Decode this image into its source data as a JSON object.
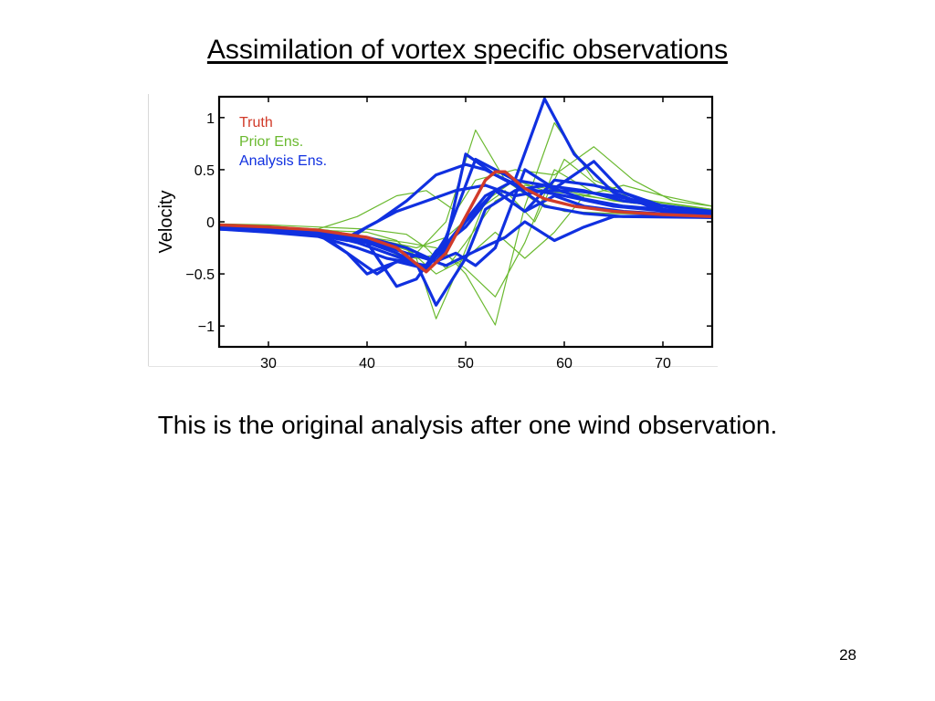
{
  "slide": {
    "title": "Assimilation of vortex specific observations",
    "caption": "This is the original analysis after one wind observation.",
    "page_number": "28"
  },
  "chart_data": {
    "type": "line",
    "ylabel": "Velocity",
    "xlabel": "",
    "xlim": [
      25,
      75
    ],
    "ylim": [
      -1.2,
      1.2
    ],
    "xticks": [
      30,
      40,
      50,
      60,
      70
    ],
    "yticks": [
      {
        "value": 1,
        "label": "1"
      },
      {
        "value": 0.5,
        "label": "0.5"
      },
      {
        "value": 0,
        "label": "0"
      },
      {
        "value": -0.5,
        "label": "−0.5"
      },
      {
        "value": -1,
        "label": "−1"
      }
    ],
    "grid": false,
    "legend_position": "top-left",
    "legend": [
      {
        "label": "Truth",
        "color": "#d13b2a"
      },
      {
        "label": "Prior Ens.",
        "color": "#6ab92f"
      },
      {
        "label": "Analysis Ens.",
        "color": "#1030e0"
      }
    ],
    "series_groups": [
      {
        "group": "Prior Ens.",
        "color": "#6ab92f",
        "members": [
          [
            [
              25,
              -0.02
            ],
            [
              30,
              -0.03
            ],
            [
              35,
              -0.05
            ],
            [
              40,
              -0.07
            ],
            [
              44,
              -0.12
            ],
            [
              46,
              -0.25
            ],
            [
              48,
              -0.45
            ],
            [
              50,
              -0.2
            ],
            [
              53,
              0.2
            ],
            [
              56,
              0.35
            ],
            [
              60,
              0.3
            ],
            [
              65,
              0.2
            ],
            [
              70,
              0.15
            ],
            [
              75,
              0.12
            ]
          ],
          [
            [
              25,
              -0.05
            ],
            [
              30,
              -0.06
            ],
            [
              35,
              -0.08
            ],
            [
              40,
              -0.1
            ],
            [
              43,
              -0.18
            ],
            [
              45,
              -0.35
            ],
            [
              47,
              -0.93
            ],
            [
              49,
              -0.5
            ],
            [
              52,
              0.2
            ],
            [
              55,
              0.4
            ],
            [
              58,
              0.3
            ],
            [
              62,
              0.25
            ],
            [
              67,
              0.18
            ],
            [
              75,
              0.12
            ]
          ],
          [
            [
              25,
              -0.03
            ],
            [
              30,
              -0.04
            ],
            [
              36,
              -0.08
            ],
            [
              40,
              -0.15
            ],
            [
              44,
              -0.2
            ],
            [
              47,
              -0.25
            ],
            [
              50,
              -0.45
            ],
            [
              53,
              -0.72
            ],
            [
              56,
              -0.2
            ],
            [
              59,
              0.5
            ],
            [
              63,
              0.28
            ],
            [
              67,
              0.18
            ],
            [
              75,
              0.12
            ]
          ],
          [
            [
              25,
              -0.05
            ],
            [
              30,
              -0.07
            ],
            [
              35,
              -0.1
            ],
            [
              39,
              -0.2
            ],
            [
              42,
              -0.3
            ],
            [
              45,
              -0.35
            ],
            [
              48,
              -0.3
            ],
            [
              50,
              -0.5
            ],
            [
              53,
              -0.99
            ],
            [
              56,
              0.15
            ],
            [
              59,
              0.95
            ],
            [
              63,
              0.4
            ],
            [
              68,
              0.2
            ],
            [
              75,
              0.12
            ]
          ],
          [
            [
              25,
              -0.04
            ],
            [
              30,
              -0.05
            ],
            [
              35,
              -0.07
            ],
            [
              39,
              0.05
            ],
            [
              43,
              0.25
            ],
            [
              46,
              0.3
            ],
            [
              49,
              0.1
            ],
            [
              51,
              0.4
            ],
            [
              55,
              0.5
            ],
            [
              59,
              0.45
            ],
            [
              63,
              0.72
            ],
            [
              67,
              0.4
            ],
            [
              71,
              0.2
            ],
            [
              75,
              0.15
            ]
          ],
          [
            [
              25,
              -0.05
            ],
            [
              30,
              -0.06
            ],
            [
              35,
              -0.1
            ],
            [
              40,
              -0.15
            ],
            [
              45,
              -0.25
            ],
            [
              48,
              -0.15
            ],
            [
              51,
              0.1
            ],
            [
              54,
              0.3
            ],
            [
              57,
              0.0
            ],
            [
              60,
              0.6
            ],
            [
              64,
              0.3
            ],
            [
              69,
              0.2
            ],
            [
              75,
              0.12
            ]
          ],
          [
            [
              25,
              -0.06
            ],
            [
              30,
              -0.08
            ],
            [
              35,
              -0.12
            ],
            [
              40,
              -0.15
            ],
            [
              44,
              -0.25
            ],
            [
              47,
              -0.5
            ],
            [
              50,
              -0.35
            ],
            [
              53,
              -0.1
            ],
            [
              56,
              -0.35
            ],
            [
              59,
              -0.1
            ],
            [
              62,
              0.25
            ],
            [
              66,
              0.35
            ],
            [
              70,
              0.25
            ],
            [
              75,
              0.15
            ]
          ],
          [
            [
              25,
              -0.04
            ],
            [
              30,
              -0.05
            ],
            [
              35,
              -0.07
            ],
            [
              40,
              -0.15
            ],
            [
              45,
              -0.3
            ],
            [
              48,
              0.0
            ],
            [
              51,
              0.88
            ],
            [
              54,
              0.4
            ],
            [
              57,
              0.2
            ],
            [
              60,
              0.1
            ],
            [
              65,
              0.08
            ],
            [
              75,
              0.06
            ]
          ]
        ]
      },
      {
        "group": "Analysis Ens.",
        "color": "#1030e0",
        "members": [
          [
            [
              25,
              -0.06
            ],
            [
              30,
              -0.08
            ],
            [
              36,
              -0.12
            ],
            [
              40,
              -0.2
            ],
            [
              43,
              -0.3
            ],
            [
              46,
              -0.45
            ],
            [
              49,
              -0.1
            ],
            [
              52,
              0.25
            ],
            [
              55,
              0.4
            ],
            [
              58,
              0.35
            ],
            [
              62,
              0.22
            ],
            [
              66,
              0.15
            ],
            [
              75,
              0.08
            ]
          ],
          [
            [
              25,
              -0.07
            ],
            [
              30,
              -0.1
            ],
            [
              35,
              -0.14
            ],
            [
              39,
              -0.25
            ],
            [
              42,
              -0.35
            ],
            [
              46,
              -0.42
            ],
            [
              48,
              -0.2
            ],
            [
              50,
              0.65
            ],
            [
              53,
              0.45
            ],
            [
              56,
              0.32
            ],
            [
              60,
              0.25
            ],
            [
              65,
              0.15
            ],
            [
              75,
              0.06
            ]
          ],
          [
            [
              25,
              -0.05
            ],
            [
              30,
              -0.07
            ],
            [
              35,
              -0.1
            ],
            [
              38,
              -0.3
            ],
            [
              41,
              -0.5
            ],
            [
              43,
              -0.38
            ],
            [
              46,
              -0.45
            ],
            [
              48,
              -0.15
            ],
            [
              51,
              0.6
            ],
            [
              55,
              0.4
            ],
            [
              58,
              1.18
            ],
            [
              61,
              0.65
            ],
            [
              65,
              0.28
            ],
            [
              70,
              0.1
            ],
            [
              75,
              0.05
            ]
          ],
          [
            [
              25,
              -0.05
            ],
            [
              30,
              -0.07
            ],
            [
              35,
              -0.11
            ],
            [
              39,
              -0.2
            ],
            [
              42,
              -0.3
            ],
            [
              45,
              -0.4
            ],
            [
              47,
              -0.8
            ],
            [
              50,
              -0.35
            ],
            [
              52,
              0.12
            ],
            [
              55,
              0.3
            ],
            [
              58,
              0.35
            ],
            [
              62,
              0.3
            ],
            [
              66,
              0.2
            ],
            [
              75,
              0.1
            ]
          ],
          [
            [
              25,
              -0.04
            ],
            [
              30,
              -0.05
            ],
            [
              35,
              -0.1
            ],
            [
              40,
              -0.2
            ],
            [
              43,
              -0.62
            ],
            [
              45,
              -0.55
            ],
            [
              47,
              -0.28
            ],
            [
              50,
              -0.05
            ],
            [
              53,
              0.3
            ],
            [
              56,
              0.1
            ],
            [
              59,
              0.4
            ],
            [
              63,
              0.35
            ],
            [
              66,
              0.28
            ],
            [
              70,
              0.15
            ],
            [
              75,
              0.08
            ]
          ],
          [
            [
              25,
              -0.06
            ],
            [
              30,
              -0.08
            ],
            [
              36,
              -0.1
            ],
            [
              40,
              -0.15
            ],
            [
              44,
              -0.25
            ],
            [
              47,
              -0.38
            ],
            [
              49,
              -0.3
            ],
            [
              51,
              -0.42
            ],
            [
              53,
              -0.25
            ],
            [
              56,
              0.5
            ],
            [
              59,
              0.32
            ],
            [
              63,
              0.58
            ],
            [
              66,
              0.28
            ],
            [
              70,
              0.12
            ],
            [
              75,
              0.06
            ]
          ],
          [
            [
              25,
              -0.07
            ],
            [
              30,
              -0.09
            ],
            [
              35,
              -0.13
            ],
            [
              38,
              -0.18
            ],
            [
              40,
              -0.05
            ],
            [
              43,
              0.1
            ],
            [
              46,
              0.2
            ],
            [
              49,
              0.3
            ],
            [
              52,
              0.35
            ],
            [
              55,
              0.25
            ],
            [
              58,
              0.3
            ],
            [
              61,
              0.3
            ],
            [
              65,
              0.25
            ],
            [
              70,
              0.15
            ],
            [
              75,
              0.1
            ]
          ],
          [
            [
              25,
              -0.05
            ],
            [
              30,
              -0.07
            ],
            [
              35,
              -0.12
            ],
            [
              38,
              -0.3
            ],
            [
              40,
              -0.5
            ],
            [
              42,
              -0.42
            ],
            [
              45,
              -0.32
            ],
            [
              48,
              -0.42
            ],
            [
              51,
              -0.28
            ],
            [
              54,
              -0.15
            ],
            [
              56,
              0.0
            ],
            [
              59,
              -0.18
            ],
            [
              62,
              -0.05
            ],
            [
              65,
              0.05
            ],
            [
              70,
              0.06
            ],
            [
              75,
              0.06
            ]
          ],
          [
            [
              25,
              -0.05
            ],
            [
              30,
              -0.07
            ],
            [
              35,
              -0.1
            ],
            [
              38,
              -0.15
            ],
            [
              41,
              0.0
            ],
            [
              44,
              0.2
            ],
            [
              47,
              0.45
            ],
            [
              50,
              0.55
            ],
            [
              52,
              0.5
            ],
            [
              55,
              0.35
            ],
            [
              58,
              0.15
            ],
            [
              62,
              0.08
            ],
            [
              66,
              0.05
            ],
            [
              75,
              0.04
            ]
          ],
          [
            [
              25,
              -0.06
            ],
            [
              30,
              -0.07
            ],
            [
              35,
              -0.1
            ],
            [
              40,
              -0.18
            ],
            [
              44,
              -0.3
            ],
            [
              47,
              -0.38
            ],
            [
              50,
              0.0
            ],
            [
              53,
              0.3
            ],
            [
              56,
              0.1
            ],
            [
              59,
              0.25
            ],
            [
              62,
              0.15
            ],
            [
              66,
              0.1
            ],
            [
              75,
              0.05
            ]
          ]
        ]
      },
      {
        "group": "Truth",
        "color": "#d13b2a",
        "members": [
          [
            [
              25,
              -0.03
            ],
            [
              30,
              -0.05
            ],
            [
              35,
              -0.08
            ],
            [
              40,
              -0.15
            ],
            [
              43,
              -0.25
            ],
            [
              46,
              -0.48
            ],
            [
              48,
              -0.3
            ],
            [
              50,
              0.05
            ],
            [
              52,
              0.4
            ],
            [
              53,
              0.48
            ],
            [
              54,
              0.48
            ],
            [
              56,
              0.32
            ],
            [
              58,
              0.22
            ],
            [
              61,
              0.15
            ],
            [
              65,
              0.1
            ],
            [
              70,
              0.07
            ],
            [
              75,
              0.05
            ]
          ]
        ]
      }
    ]
  }
}
